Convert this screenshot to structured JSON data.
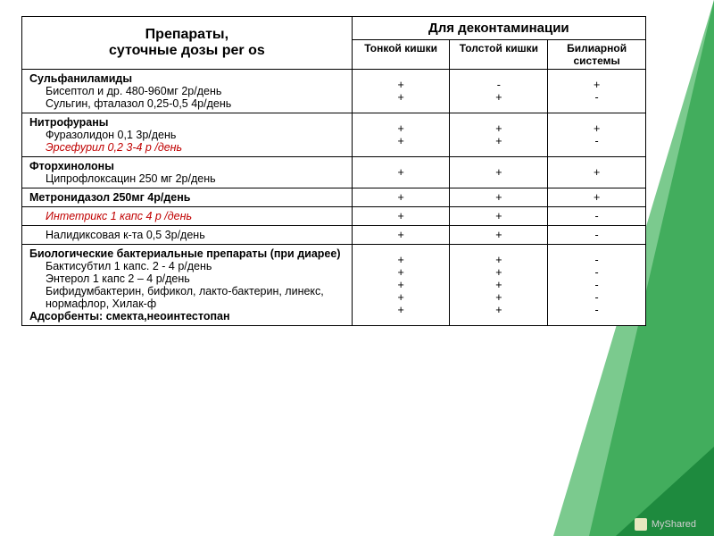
{
  "colors": {
    "triangle_light": "#4fb868",
    "triangle_dark": "#1e8a3e",
    "border": "#000000",
    "text": "#000000",
    "red_text": "#c00000",
    "watermark": "#d0d0d0",
    "bg": "#ffffff"
  },
  "header": {
    "left_line1": "Препараты,",
    "left_line2": "суточные дозы per os",
    "right_span": "Для деконтаминации",
    "sub1": "Тонкой кишки",
    "sub2": "Толстой кишки",
    "sub3": "Билиарной системы"
  },
  "rows": [
    {
      "cat": "Сульфаниламиды",
      "drugs": [
        "Бисептол и др.  480-960мг  2р/день",
        "Сульгин, фталазол  0,25-0,5  4р/день"
      ],
      "c1": "+\n+",
      "c2": "-\n+",
      "c3": "+\n-"
    },
    {
      "cat": "Нитрофураны",
      "drugs": [
        "Фуразолидон  0,1  3р/день",
        {
          "text": "Эрсефурил  0,2  3-4  р /день",
          "red": true
        }
      ],
      "c1": "+\n+",
      "c2": "+\n+",
      "c3": "+\n-"
    },
    {
      "cat": "Фторхинолоны",
      "drugs": [
        "Ципрофлоксацин  250 мг  2р/день"
      ],
      "c1": "+",
      "c2": "+",
      "c3": "+"
    },
    {
      "cat": "Метронидазол  250мг  4р/день",
      "drugs": [],
      "c1": "+",
      "c2": "+",
      "c3": "+"
    },
    {
      "cat": "",
      "drugs": [
        {
          "text": "Интетрикс  1  капс  4  р /день",
          "red": true,
          "ital": true
        }
      ],
      "c1": "+",
      "c2": "+",
      "c3": "-"
    },
    {
      "cat": "",
      "drugs": [
        "Налидиксовая к-та  0,5  3р/день"
      ],
      "c1": "+",
      "c2": "+",
      "c3": "-"
    },
    {
      "cat": "Биологические бактериальные препараты (при   диарее)",
      "drugs": [
        "Бактисубтил  1 капс.  2 - 4 р/день",
        "Энтерол  1 капс  2 – 4 р/день",
        "Бифидумбактерин, бификол,  лакто-бактерин, линекс, нормафлор,  Хилак-ф"
      ],
      "cat2_bold": "Адсорбенты: смекта,неоинтестопан",
      "c1": "+\n+\n+\n+\n+",
      "c2": "+\n+\n+\n+\n+",
      "c3": "-\n-\n-\n-\n-"
    }
  ],
  "watermark": "MyShared"
}
